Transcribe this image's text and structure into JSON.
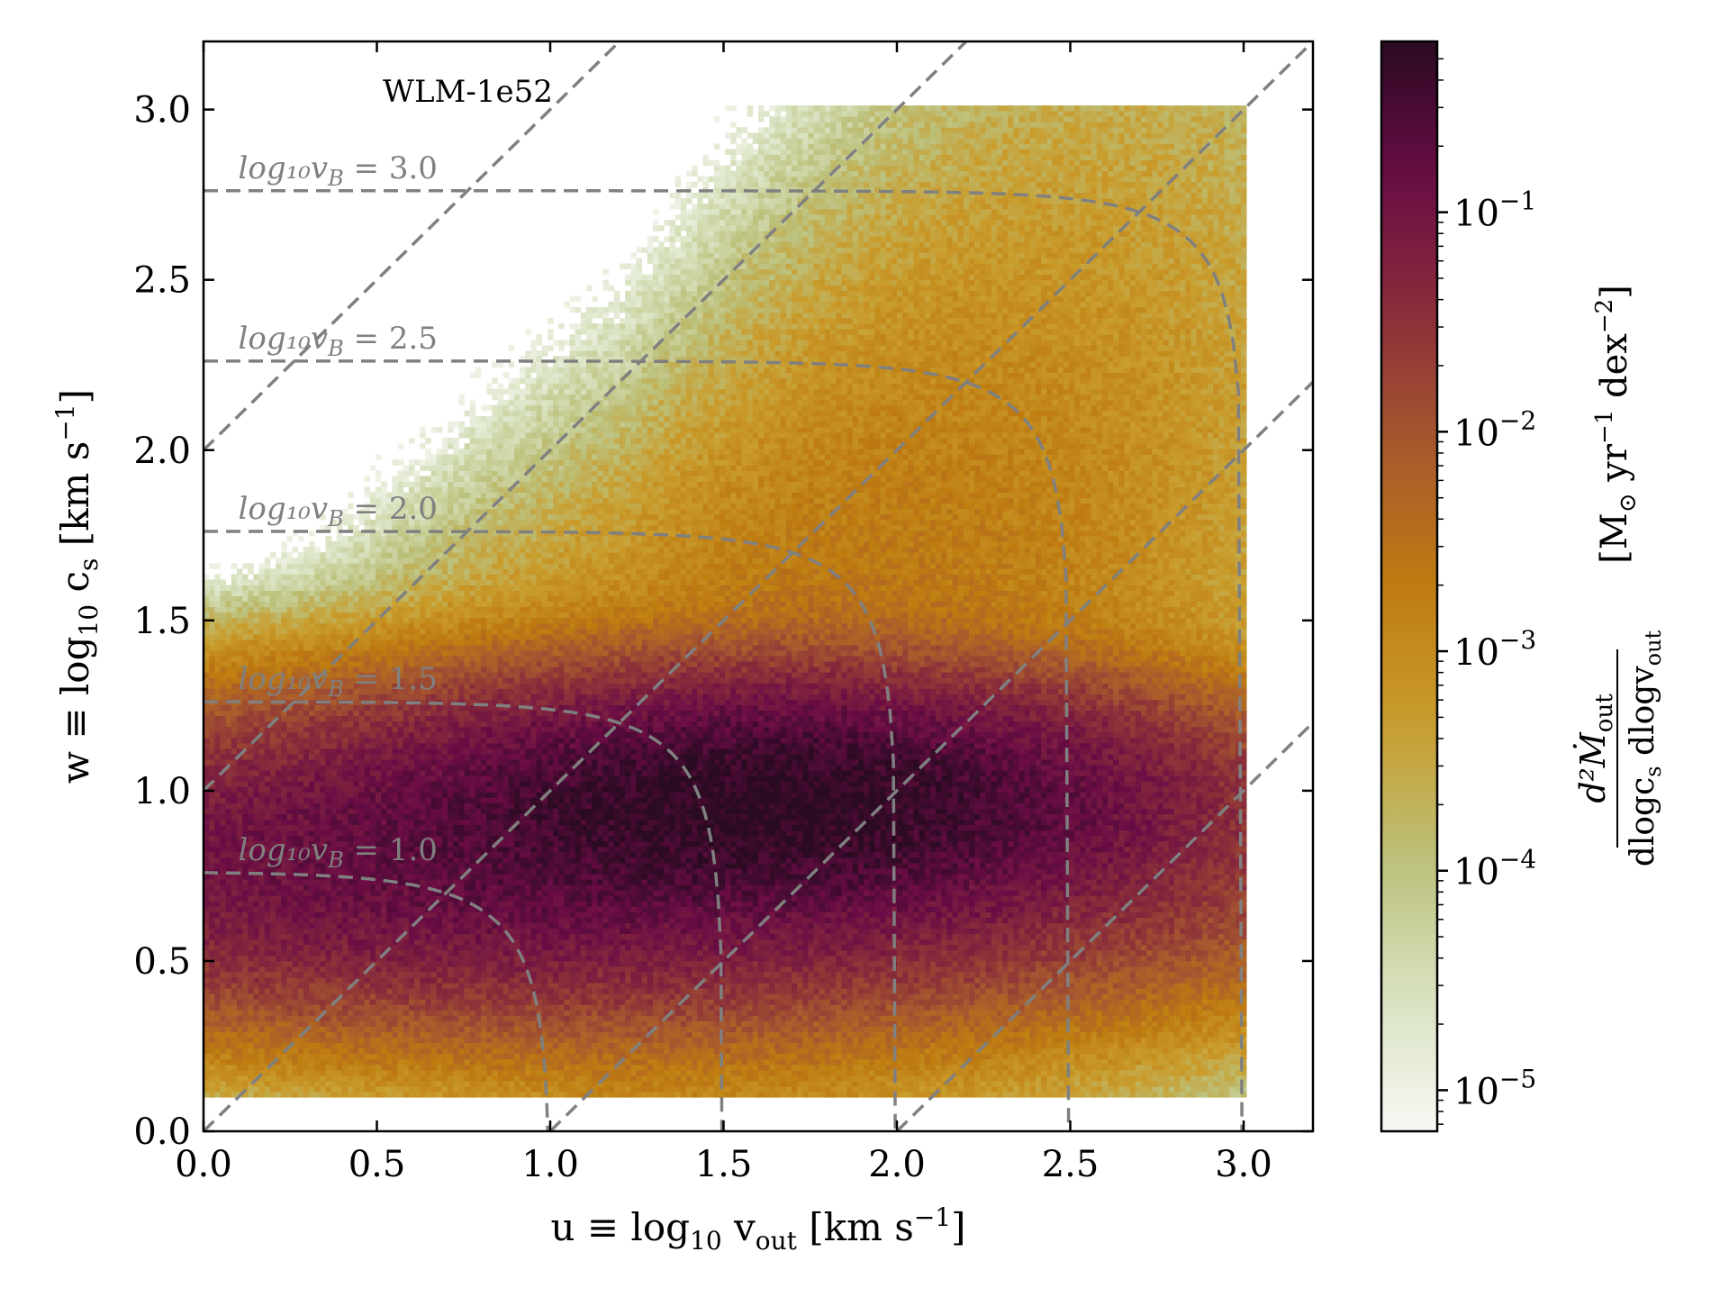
{
  "chart_data": {
    "type": "heatmap",
    "title": "WLM-1e52",
    "xlabel": {
      "main": "u ≡ log",
      "sub": "10",
      "var": " v",
      "varsub": "out",
      "unit": " [km s",
      "unitsup": "−1",
      "close": "]"
    },
    "ylabel": {
      "main": "w ≡ log",
      "sub": "10",
      "var": " c",
      "varsub": "s",
      "unit": " [km s",
      "unitsup": "−1",
      "close": "]"
    },
    "xlim": [
      0.0,
      3.2
    ],
    "ylim": [
      0.0,
      3.2
    ],
    "xticks": [
      "0.0",
      "0.5",
      "1.0",
      "1.5",
      "2.0",
      "2.5",
      "3.0"
    ],
    "yticks": [
      "0.0",
      "0.5",
      "1.0",
      "1.5",
      "2.0",
      "2.5",
      "3.0"
    ],
    "colorbar": {
      "scale": "log",
      "range": [
        6.5e-06,
        0.6
      ],
      "ticks": [
        {
          "value": 1e-05,
          "base": "10",
          "exp": "−5"
        },
        {
          "value": 0.0001,
          "base": "10",
          "exp": "−4"
        },
        {
          "value": 0.001,
          "base": "10",
          "exp": "−3"
        },
        {
          "value": 0.01,
          "base": "10",
          "exp": "−2"
        },
        {
          "value": 0.1,
          "base": "10",
          "exp": "−1"
        }
      ],
      "label_numerator": "d²Ṁ",
      "label_numerator_sub": "out",
      "label_denominator": "dlogc",
      "label_denominator_sub1": "s",
      "label_denominator_mid": " dlogv",
      "label_denominator_sub2": "out",
      "label_unit": "[M",
      "label_unit_sub": "⊙",
      "label_unit_rest": " yr",
      "label_unit_sup1": "−1",
      "label_unit_rest2": " dex",
      "label_unit_sup2": "−2",
      "label_unit_close": "]",
      "colors": [
        "#f7f8f4",
        "#d8e2c0",
        "#bcc07a",
        "#c99c2c",
        "#bf7c10",
        "#a85a2e",
        "#8a2e3a",
        "#6a0c45",
        "#2a0b22"
      ]
    },
    "bernoulli_contours": [
      {
        "log_vB": 1.0,
        "label": "log₁₀v",
        "label_sub": "B",
        "label_value": " = 1.0"
      },
      {
        "log_vB": 1.5,
        "label": "log₁₀v",
        "label_sub": "B",
        "label_value": " = 1.5"
      },
      {
        "log_vB": 2.0,
        "label": "log₁₀v",
        "label_sub": "B",
        "label_value": " = 2.0"
      },
      {
        "log_vB": 2.5,
        "label": "log₁₀v",
        "label_sub": "B",
        "label_value": " = 2.5"
      },
      {
        "log_vB": 3.0,
        "label": "log₁₀v",
        "label_sub": "B",
        "label_value": " = 3.0"
      }
    ],
    "diagonal_lines": [
      {
        "offset": 2.0
      },
      {
        "offset": 1.0
      },
      {
        "offset": 0.0
      },
      {
        "offset": -1.0
      },
      {
        "offset": -2.0
      }
    ],
    "distribution": {
      "description_peak": [
        1.65,
        0.97
      ],
      "peak_value": 0.5
    },
    "line_color": "#808080"
  }
}
